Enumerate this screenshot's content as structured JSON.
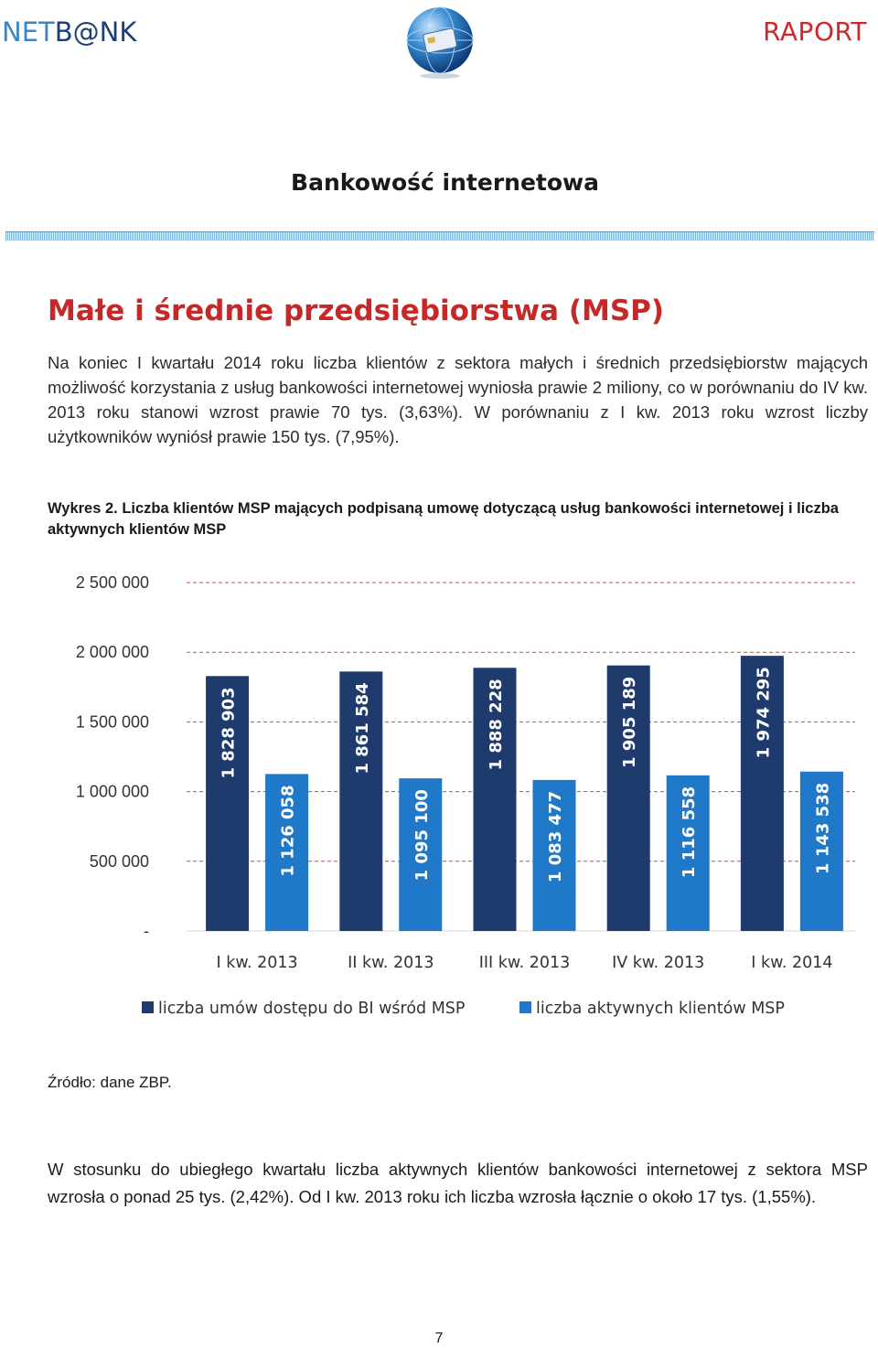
{
  "header": {
    "logo_net": "NET",
    "logo_bank": "B@NK",
    "report_label": "RAPORT"
  },
  "section_title": "Bankowość internetowa",
  "heading": "Małe i średnie przedsiębiorstwa (MSP)",
  "intro_paragraph": "Na koniec I kwartału 2014 roku liczba klientów z sektora małych i średnich przedsiębiorstw mających możliwość korzystania z usług bankowości internetowej wyniosła prawie 2 miliony, co w porównaniu do IV kw. 2013 roku stanowi wzrost prawie 70 tys. (3,63%). W porównaniu z I kw. 2013 roku wzrost liczby użytkowników wyniósł prawie 150 tys. (7,95%).",
  "figure_caption": "Wykres 2. Liczba klientów MSP mających podpisaną umowę dotyczącą usług bankowości internetowej i liczba aktywnych klientów MSP",
  "chart_data": {
    "type": "bar",
    "title": "",
    "xlabel": "",
    "ylabel": "",
    "ylim": [
      0,
      2500000
    ],
    "yticks": [
      0,
      500000,
      1000000,
      1500000,
      2000000,
      2500000
    ],
    "ytick_labels": [
      "-",
      "500 000",
      "1 000 000",
      "1 500 000",
      "2 000 000",
      "2 500 000"
    ],
    "grid": true,
    "legend_position": "bottom",
    "categories": [
      "I kw. 2013",
      "II kw. 2013",
      "III kw. 2013",
      "IV kw. 2013",
      "I kw. 2014"
    ],
    "series": [
      {
        "name": "liczba umów dostępu do BI wśród MSP",
        "color": "#1f3b6e",
        "values": [
          1828903,
          1861584,
          1888228,
          1905189,
          1974295
        ],
        "value_labels": [
          "1 828 903",
          "1 861 584",
          "1 888 228",
          "1 905 189",
          "1 974 295"
        ]
      },
      {
        "name": "liczba aktywnych klientów MSP",
        "color": "#1f78c8",
        "values": [
          1126058,
          1095100,
          1083477,
          1116558,
          1143538
        ],
        "value_labels": [
          "1 126 058",
          "1 095 100",
          "1 083 477",
          "1 116 558",
          "1 143 538"
        ]
      }
    ]
  },
  "source_note": "Źródło: dane ZBP.",
  "closing_paragraph": "W stosunku do ubiegłego kwartału liczba aktywnych klientów bankowości internetowej z sektora MSP wzrosła o ponad 25 tys. (2,42%). Od I kw. 2013 roku ich liczba wzrosła łącznie o około 17 tys. (1,55%).",
  "page_number": "7"
}
